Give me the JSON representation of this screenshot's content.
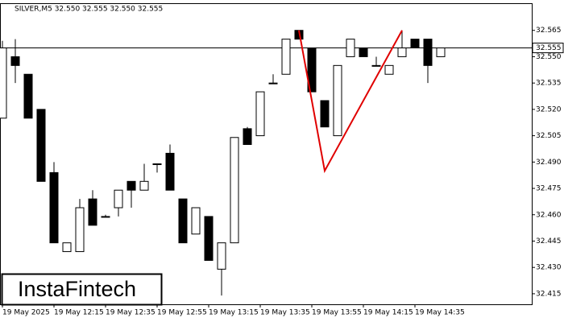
{
  "chart_data": {
    "type": "candlestick",
    "title": "SILVER,M5  32.550 32.555 32.550 32.555",
    "watermark": "InstaFintech",
    "categories": [
      "19 May 2025",
      null,
      null,
      null,
      "19 May 12:15",
      null,
      null,
      null,
      "19 May 12:35",
      null,
      null,
      null,
      "19 May 12:55",
      null,
      null,
      null,
      "19 May 13:15",
      null,
      null,
      null,
      "19 May 13:35",
      null,
      null,
      null,
      "19 May 13:55",
      null,
      null,
      null,
      "19 May 14:15",
      null,
      null,
      null,
      "19 May 14:35",
      null,
      null
    ],
    "open": [
      32.515,
      32.55,
      32.54,
      32.52,
      32.484,
      32.439,
      32.439,
      32.469,
      32.459,
      32.464,
      32.479,
      32.474,
      32.489,
      32.495,
      32.469,
      32.449,
      32.459,
      32.429,
      32.444,
      32.509,
      32.505,
      32.535,
      32.54,
      32.565,
      32.555,
      32.525,
      32.505,
      32.55,
      32.555,
      32.545,
      32.54,
      32.55,
      32.56,
      32.56,
      32.55
    ],
    "high": [
      32.559,
      32.56,
      32.54,
      32.52,
      32.49,
      32.444,
      32.469,
      32.474,
      32.46,
      32.474,
      32.479,
      32.489,
      32.489,
      32.5,
      32.469,
      32.464,
      32.459,
      32.444,
      32.504,
      32.51,
      32.53,
      32.54,
      32.56,
      32.565,
      32.555,
      32.525,
      32.545,
      32.56,
      32.555,
      32.55,
      32.545,
      32.565,
      32.56,
      32.56,
      32.555
    ],
    "low": [
      32.515,
      32.535,
      32.515,
      32.479,
      32.444,
      32.439,
      32.439,
      32.454,
      32.459,
      32.459,
      32.464,
      32.474,
      32.484,
      32.474,
      32.444,
      32.449,
      32.434,
      32.414,
      32.444,
      32.5,
      32.505,
      32.535,
      32.54,
      32.56,
      32.53,
      32.51,
      32.505,
      32.55,
      32.55,
      32.545,
      32.54,
      32.55,
      32.555,
      32.535,
      32.55
    ],
    "close": [
      32.555,
      32.545,
      32.515,
      32.479,
      32.444,
      32.444,
      32.464,
      32.454,
      32.459,
      32.474,
      32.474,
      32.479,
      32.489,
      32.474,
      32.444,
      32.464,
      32.434,
      32.444,
      32.504,
      32.5,
      32.53,
      32.535,
      32.56,
      32.56,
      32.53,
      32.51,
      32.545,
      32.56,
      32.55,
      32.545,
      32.545,
      32.555,
      32.555,
      32.545,
      32.555
    ],
    "pattern": {
      "color": "#e00000",
      "x": [
        23,
        25,
        31
      ],
      "values": [
        32.565,
        32.485,
        32.565
      ]
    },
    "current_price": 32.555,
    "ylim": [
      32.409,
      32.58
    ],
    "yticks": [
      32.565,
      {
        "value": 32.55,
        "label": "32.550"
      },
      32.535,
      {
        "value": 32.52,
        "label": "32.520"
      },
      32.505,
      {
        "value": 32.49,
        "label": "32.490"
      },
      32.475,
      {
        "value": 32.46,
        "label": "32.460"
      },
      32.445,
      {
        "value": 32.43,
        "label": "32.430"
      },
      32.415
    ]
  }
}
